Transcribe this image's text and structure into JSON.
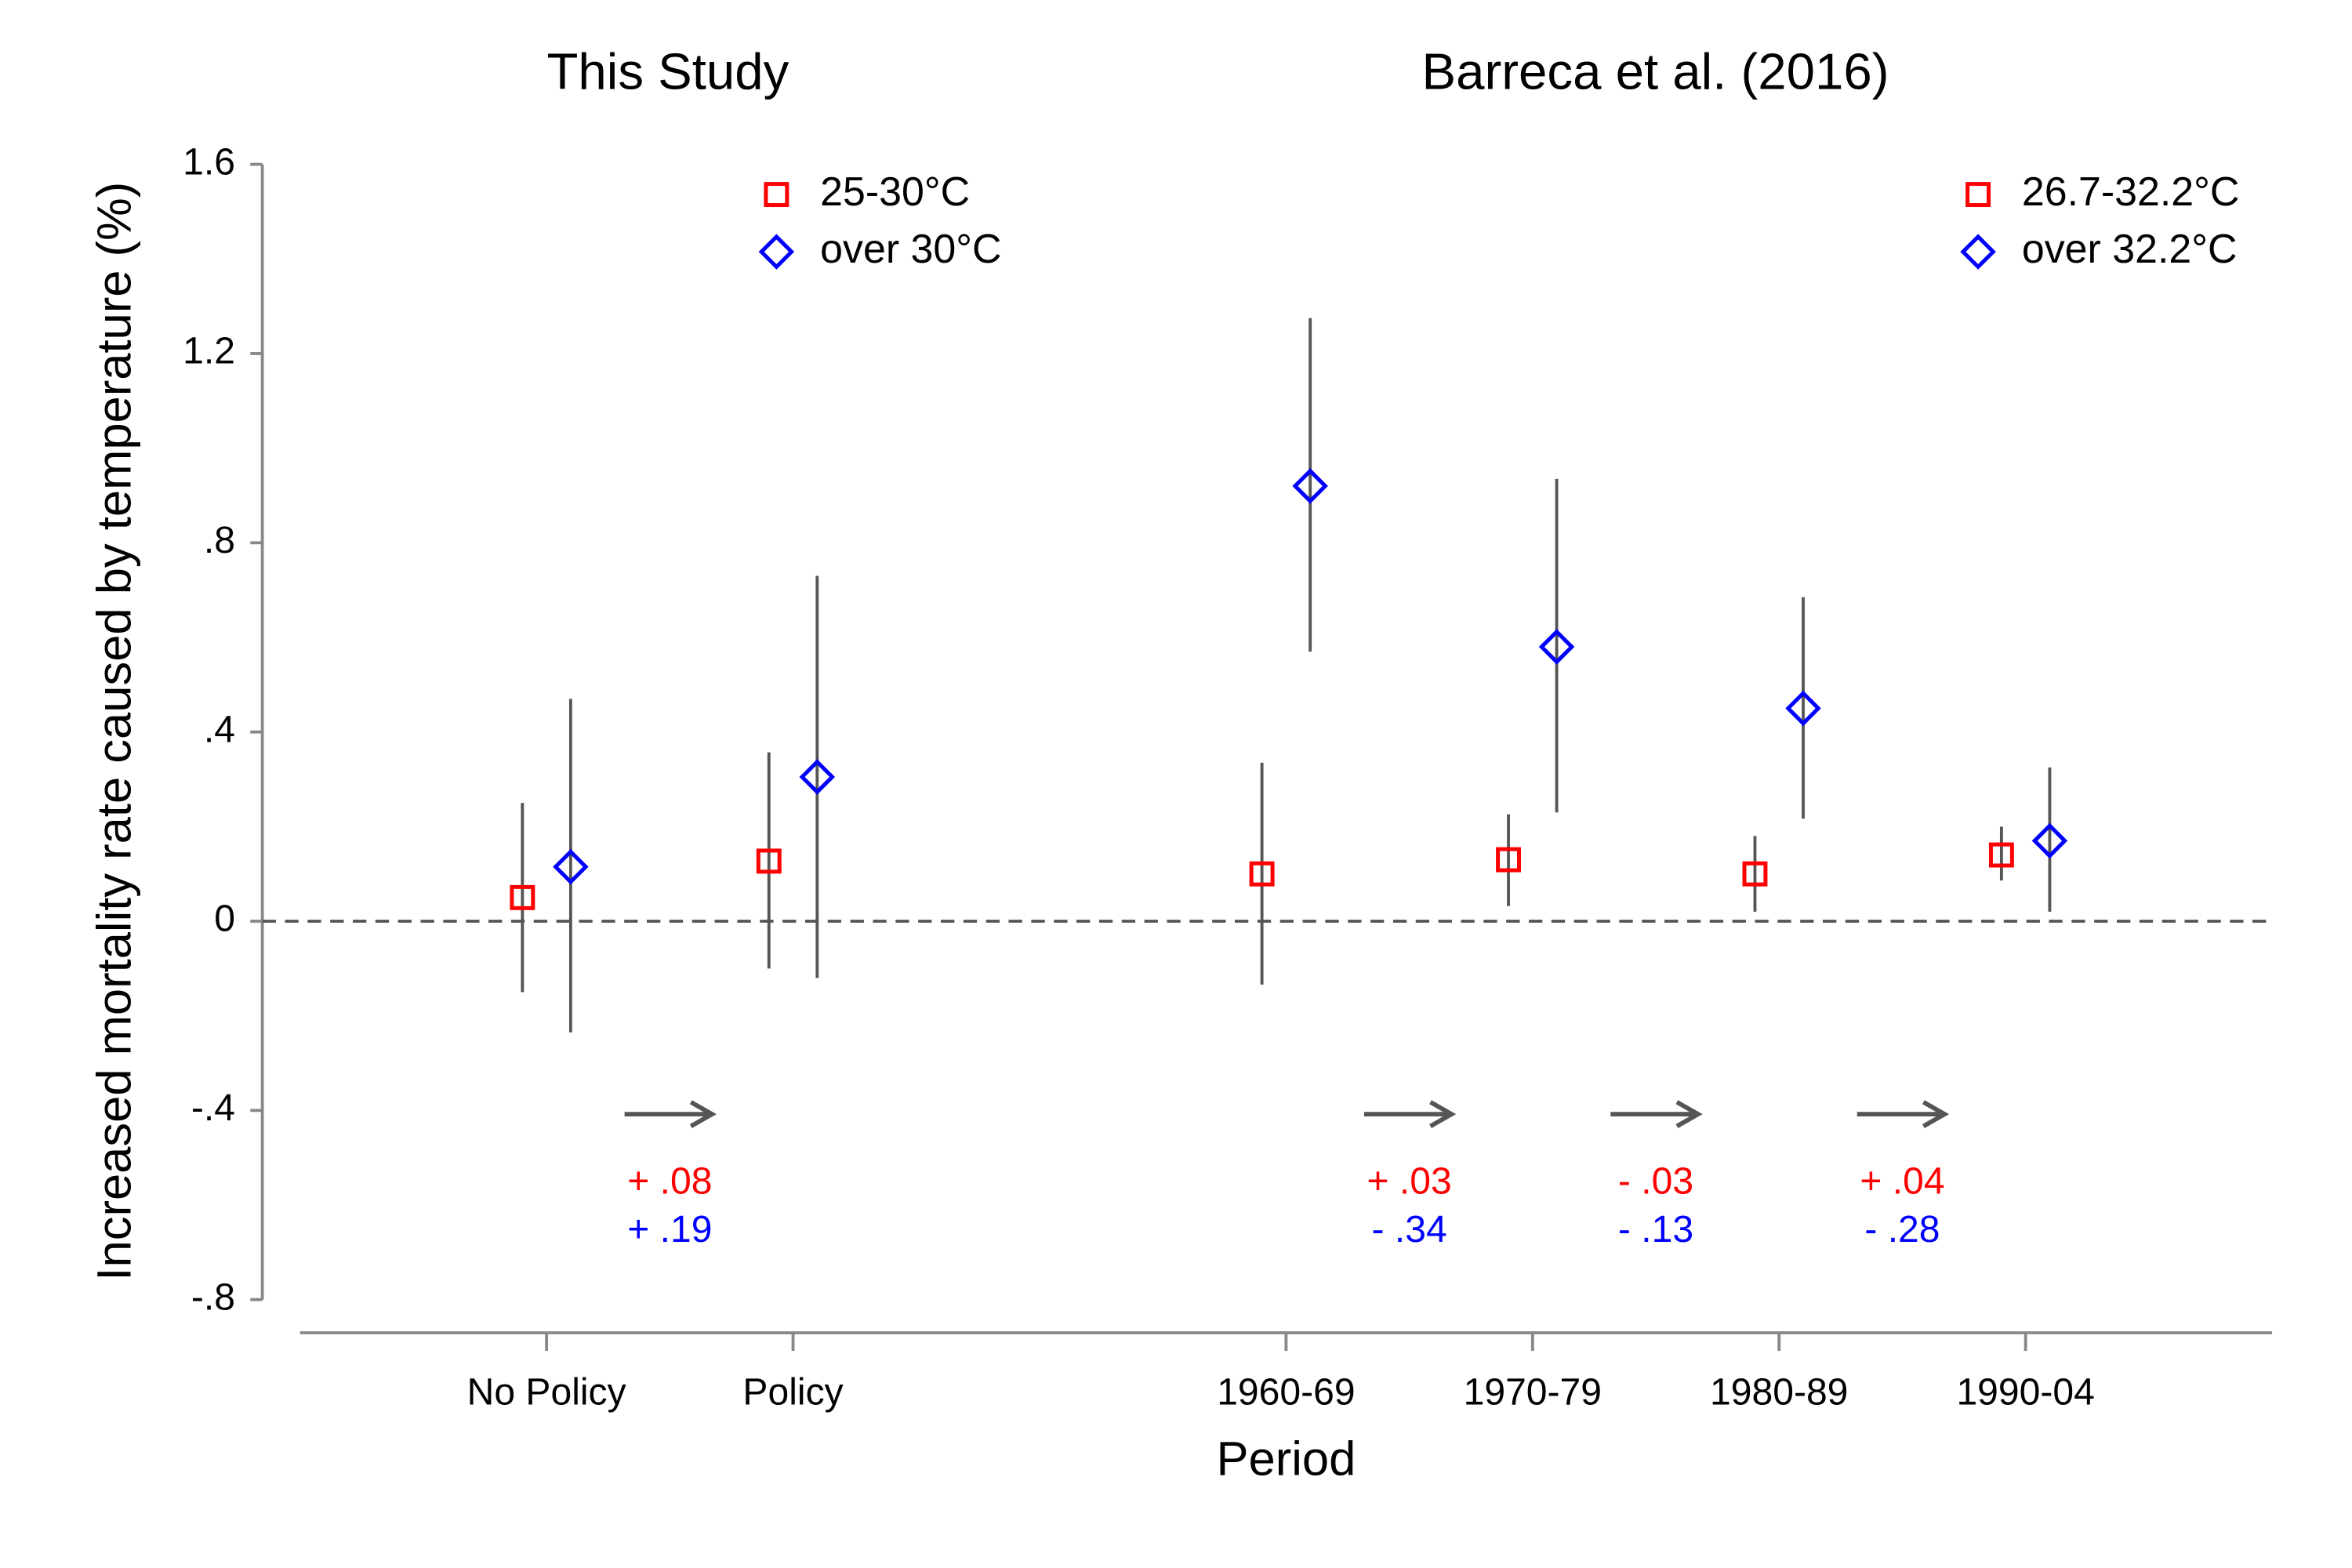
{
  "chart_data": {
    "type": "dot-errorbar",
    "panel_titles": [
      "This Study",
      "Barreca et al. (2016)"
    ],
    "xlabel": "Period",
    "ylabel": "Increased mortality rate caused by temperature (%)",
    "xlim": [
      0,
      8
    ],
    "xticks": [
      {
        "value": 1,
        "label": "No Policy"
      },
      {
        "value": 2,
        "label": "Policy"
      },
      {
        "value": 4,
        "label": "1960-69"
      },
      {
        "value": 5,
        "label": "1970-79"
      },
      {
        "value": 6,
        "label": "1980-89"
      },
      {
        "value": 7,
        "label": "1990-04"
      }
    ],
    "ylim": [
      -0.8,
      1.6
    ],
    "yticks": [
      {
        "value": -0.8,
        "label": "-.8"
      },
      {
        "value": -0.4,
        "label": "-.4"
      },
      0,
      {
        "value": 0.4,
        "label": ".4"
      },
      {
        "value": 0.8,
        "label": ".8"
      },
      1.2,
      1.6
    ],
    "hline": 0,
    "series": [
      {
        "name": "25-30°C",
        "color": "#ff0000",
        "marker": "square",
        "panel": 0,
        "x": [
          1,
          2
        ],
        "values": [
          0.05,
          0.127
        ],
        "lower": [
          -0.15,
          -0.1
        ],
        "upper": [
          0.25,
          0.357
        ]
      },
      {
        "name": "over 30°C",
        "color": "#0000ff",
        "marker": "diamond",
        "panel": 0,
        "x": [
          1,
          2
        ],
        "values": [
          0.115,
          0.305
        ],
        "lower": [
          -0.235,
          -0.12
        ],
        "upper": [
          0.47,
          0.73
        ]
      },
      {
        "name": "26.7-32.2°C",
        "color": "#ff0000",
        "marker": "square",
        "panel": 1,
        "x": [
          4,
          5,
          6,
          7
        ],
        "values": [
          0.1,
          0.13,
          0.1,
          0.14
        ],
        "lower": [
          -0.134,
          0.032,
          0.02,
          0.086
        ],
        "upper": [
          0.335,
          0.226,
          0.18,
          0.2
        ]
      },
      {
        "name": "over 32.2°C",
        "color": "#0000ff",
        "marker": "diamond",
        "panel": 1,
        "x": [
          4,
          5,
          6,
          7
        ],
        "values": [
          0.92,
          0.58,
          0.45,
          0.17
        ],
        "lower": [
          0.57,
          0.23,
          0.217,
          0.02
        ],
        "upper": [
          1.275,
          0.935,
          0.685,
          0.325
        ]
      }
    ],
    "changes": [
      {
        "first": "+ .08",
        "second": "+ .19"
      },
      {
        "first": "+ .03",
        "second": "- .34"
      },
      {
        "first": "- .03",
        "second": "- .13"
      },
      {
        "first": "+ .04",
        "second": "- .28"
      }
    ]
  }
}
